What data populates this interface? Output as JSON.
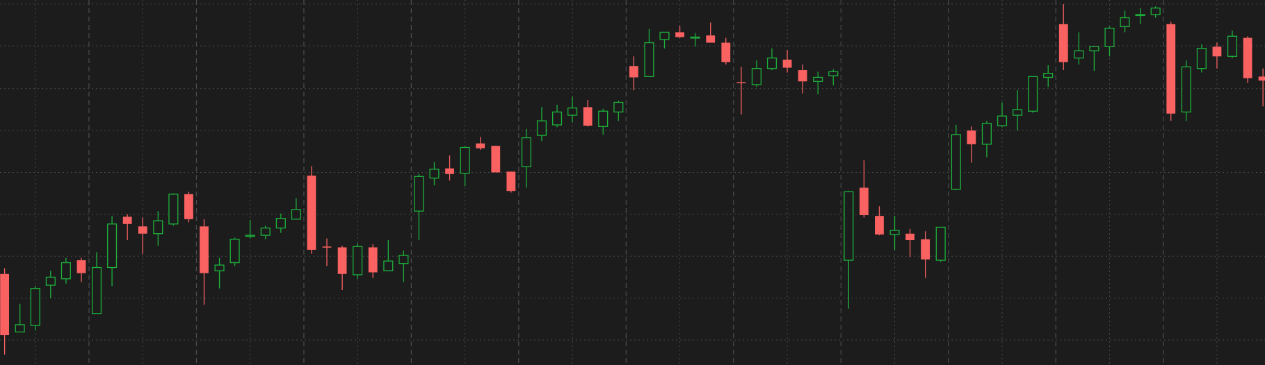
{
  "chart_data": {
    "type": "candlestick",
    "up_color": "#1db23b",
    "down_color": "#fa6161",
    "background": "#1c1c1d",
    "grid_color": "#4a4a4c",
    "grid": true,
    "xlim": [
      -0.3,
      82.13
    ],
    "xticks": [
      5.5,
      12.5,
      19.5,
      26.5,
      33.5,
      40.5,
      47.5,
      54.5,
      61.5,
      68.5,
      75.5
    ],
    "xminor": [
      2,
      9,
      16,
      23,
      30,
      37,
      44,
      51,
      58,
      65,
      72,
      79
    ],
    "ylim": [
      0,
      453
    ],
    "yticks": [
      31,
      83,
      135,
      187,
      239,
      291,
      343,
      396,
      448
    ],
    "open": [
      113,
      41,
      49,
      99,
      107,
      130,
      64,
      121,
      184,
      172,
      163,
      175,
      212,
      172,
      117,
      127,
      160,
      161,
      170,
      181,
      235,
      147,
      146,
      112,
      146,
      117,
      126,
      191,
      232,
      244,
      238,
      275,
      272,
      240,
      246,
      285,
      298,
      310,
      320,
      296,
      314,
      371,
      358,
      404,
      413,
      406,
      409,
      400,
      351,
      348,
      368,
      379,
      366,
      352,
      359,
      130,
      220,
      185,
      162,
      163,
      156,
      130,
      218,
      291,
      274,
      297,
      310,
      315,
      357,
      423,
      381,
      390,
      395,
      420,
      434,
      435,
      423,
      314,
      368,
      395,
      383,
      406,
      358
    ],
    "high": [
      120,
      76,
      98,
      117,
      133,
      133,
      140,
      185,
      187,
      183,
      191,
      213,
      215,
      181,
      133,
      158,
      180,
      173,
      188,
      207,
      247,
      157,
      148,
      151,
      150,
      155,
      142,
      237,
      252,
      260,
      272,
      283,
      272,
      240,
      293,
      320,
      323,
      333,
      329,
      318,
      328,
      383,
      417,
      413,
      421,
      412,
      425,
      406,
      370,
      378,
      393,
      391,
      373,
      364,
      367,
      216,
      254,
      197,
      185,
      169,
      166,
      171,
      298,
      296,
      303,
      326,
      341,
      358,
      372,
      448,
      413,
      395,
      420,
      440,
      443,
      445,
      426,
      378,
      398,
      400,
      415,
      408,
      368
    ],
    "low": [
      13,
      41,
      43,
      83,
      101,
      103,
      64,
      98,
      155,
      138,
      148,
      173,
      177,
      75,
      95,
      123,
      157,
      156,
      164,
      181,
      138,
      123,
      93,
      107,
      108,
      117,
      103,
      155,
      223,
      229,
      222,
      267,
      239,
      214,
      220,
      278,
      295,
      301,
      296,
      286,
      303,
      341,
      358,
      393,
      406,
      395,
      400,
      373,
      311,
      345,
      366,
      363,
      337,
      336,
      347,
      70,
      183,
      161,
      143,
      134,
      108,
      128,
      217,
      251,
      258,
      295,
      291,
      313,
      345,
      366,
      373,
      365,
      383,
      413,
      423,
      431,
      303,
      303,
      363,
      368,
      381,
      350,
      321
    ],
    "close": [
      37,
      50,
      95,
      109,
      127,
      114,
      121,
      175,
      175,
      163,
      179,
      212,
      181,
      114,
      124,
      156,
      161,
      170,
      182,
      193,
      143,
      146,
      113,
      147,
      115,
      129,
      136,
      234,
      243,
      237,
      270,
      269,
      239,
      216,
      282,
      303,
      314,
      319,
      297,
      315,
      326,
      357,
      400,
      413,
      407,
      407,
      400,
      376,
      350,
      368,
      381,
      369,
      352,
      357,
      364,
      215,
      186,
      162,
      167,
      155,
      131,
      171,
      286,
      274,
      300,
      309,
      317,
      358,
      362,
      376,
      390,
      395,
      418,
      431,
      435,
      443,
      312,
      370,
      393,
      383,
      408,
      356,
      353
    ]
  }
}
